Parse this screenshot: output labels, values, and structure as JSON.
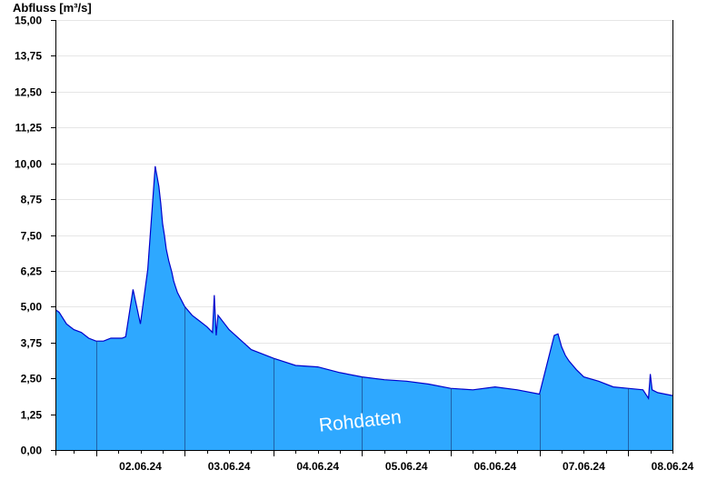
{
  "chart_data": {
    "type": "area",
    "title": "",
    "ylabel": "Abfluss [m³/s]",
    "xlabel": "",
    "ylim": [
      0,
      15
    ],
    "yticks": [
      "0,00",
      "1,25",
      "2,50",
      "3,75",
      "5,00",
      "6,25",
      "7,50",
      "8,75",
      "10,00",
      "11,25",
      "12,50",
      "13,75",
      "15,00"
    ],
    "ytick_values": [
      0,
      1.25,
      2.5,
      3.75,
      5,
      6.25,
      7.5,
      8.75,
      10,
      11.25,
      12.5,
      13.75,
      15
    ],
    "xlim": [
      "2024-06-01T13:00",
      "2024-06-08T12:00"
    ],
    "x_day_starts": [
      "2024-06-02T00:00",
      "2024-06-03T00:00",
      "2024-06-04T00:00",
      "2024-06-05T00:00",
      "2024-06-06T00:00",
      "2024-06-07T00:00",
      "2024-06-08T00:00"
    ],
    "xticks": [
      "02.06.24",
      "03.06.24",
      "04.06.24",
      "05.06.24",
      "06.06.24",
      "07.06.24",
      "08.06.24"
    ],
    "xtick_positions": [
      "2024-06-02T12:00",
      "2024-06-03T12:00",
      "2024-06-04T12:00",
      "2024-06-05T12:00",
      "2024-06-06T12:00",
      "2024-06-07T12:00",
      "2024-06-08T12:00"
    ],
    "grid": true,
    "fill_color": "#2ea8ff",
    "line_color": "#0000cc",
    "series": [
      {
        "x": [
          "2024-06-01T13:00",
          "2024-06-01T14:00",
          "2024-06-01T16:00",
          "2024-06-01T18:00",
          "2024-06-01T20:00",
          "2024-06-01T22:00",
          "2024-06-02T00:00",
          "2024-06-02T02:00",
          "2024-06-02T04:00",
          "2024-06-02T06:00",
          "2024-06-02T07:00",
          "2024-06-02T08:00",
          "2024-06-02T10:00",
          "2024-06-02T12:00",
          "2024-06-02T14:00",
          "2024-06-02T16:00",
          "2024-06-02T17:00",
          "2024-06-02T17:30",
          "2024-06-02T18:00",
          "2024-06-02T18:30",
          "2024-06-02T19:00",
          "2024-06-02T19:40",
          "2024-06-02T20:30",
          "2024-06-02T21:00",
          "2024-06-02T21:30",
          "2024-06-02T22:00",
          "2024-06-03T00:00",
          "2024-06-03T02:00",
          "2024-06-03T04:00",
          "2024-06-03T06:00",
          "2024-06-03T07:30",
          "2024-06-03T08:00",
          "2024-06-03T08:30",
          "2024-06-03T09:00",
          "2024-06-03T12:00",
          "2024-06-03T18:00",
          "2024-06-04T00:00",
          "2024-06-04T06:00",
          "2024-06-04T12:00",
          "2024-06-04T18:00",
          "2024-06-05T00:00",
          "2024-06-05T06:00",
          "2024-06-05T12:00",
          "2024-06-05T18:00",
          "2024-06-06T00:00",
          "2024-06-06T06:00",
          "2024-06-06T12:00",
          "2024-06-06T18:00",
          "2024-06-07T00:00",
          "2024-06-07T04:00",
          "2024-06-07T05:00",
          "2024-06-07T06:00",
          "2024-06-07T07:00",
          "2024-06-07T08:00",
          "2024-06-07T10:00",
          "2024-06-07T12:00",
          "2024-06-07T16:00",
          "2024-06-07T20:00",
          "2024-06-08T00:00",
          "2024-06-08T04:00",
          "2024-06-08T05:30",
          "2024-06-08T06:00",
          "2024-06-08T06:30",
          "2024-06-08T08:00",
          "2024-06-08T12:00"
        ],
        "values": [
          4.9,
          4.8,
          4.4,
          4.2,
          4.1,
          3.9,
          3.8,
          3.8,
          3.9,
          3.9,
          3.9,
          3.95,
          5.6,
          4.4,
          6.3,
          9.9,
          9.2,
          8.6,
          7.9,
          7.5,
          7.0,
          6.6,
          6.2,
          5.9,
          5.7,
          5.5,
          5.0,
          4.7,
          4.5,
          4.3,
          4.1,
          5.4,
          4.0,
          4.7,
          4.2,
          3.5,
          3.2,
          2.95,
          2.9,
          2.7,
          2.55,
          2.45,
          2.4,
          2.3,
          2.15,
          2.1,
          2.2,
          2.1,
          1.95,
          4.0,
          4.05,
          3.6,
          3.3,
          3.1,
          2.8,
          2.55,
          2.4,
          2.2,
          2.15,
          2.1,
          1.8,
          2.65,
          2.1,
          2.0,
          1.9
        ]
      }
    ]
  },
  "watermark": "Rohdaten"
}
